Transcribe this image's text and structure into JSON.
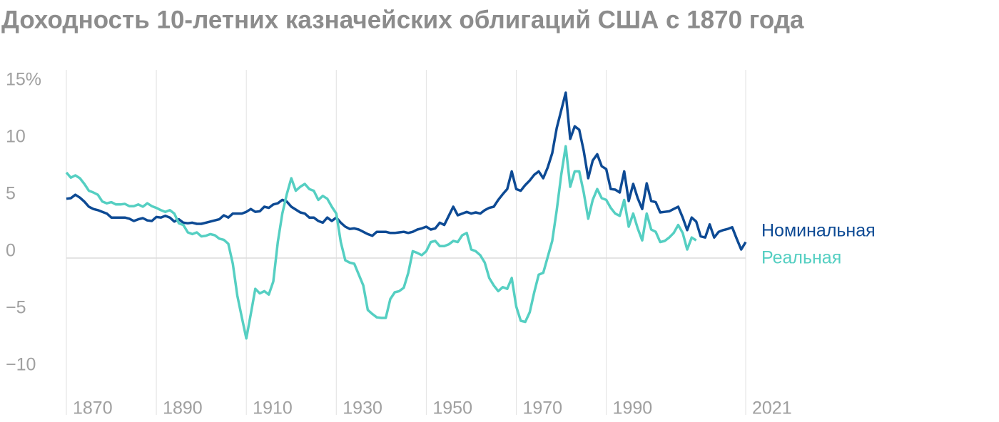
{
  "chart_data": {
    "type": "line",
    "title": "Доходность 10-летних казначейских облигаций США с 1870 года",
    "x": [
      1870,
      1871,
      1872,
      1873,
      1874,
      1875,
      1876,
      1877,
      1878,
      1879,
      1880,
      1881,
      1882,
      1883,
      1884,
      1885,
      1886,
      1887,
      1888,
      1889,
      1890,
      1891,
      1892,
      1893,
      1894,
      1895,
      1896,
      1897,
      1898,
      1899,
      1900,
      1901,
      1902,
      1903,
      1904,
      1905,
      1906,
      1907,
      1908,
      1909,
      1910,
      1911,
      1912,
      1913,
      1914,
      1915,
      1916,
      1917,
      1918,
      1919,
      1920,
      1921,
      1922,
      1923,
      1924,
      1925,
      1926,
      1927,
      1928,
      1929,
      1930,
      1931,
      1932,
      1933,
      1934,
      1935,
      1936,
      1937,
      1938,
      1939,
      1940,
      1941,
      1942,
      1943,
      1944,
      1945,
      1946,
      1947,
      1948,
      1949,
      1950,
      1951,
      1952,
      1953,
      1954,
      1955,
      1956,
      1957,
      1958,
      1959,
      1960,
      1961,
      1962,
      1963,
      1964,
      1965,
      1966,
      1967,
      1968,
      1969,
      1970,
      1971,
      1972,
      1973,
      1974,
      1975,
      1976,
      1977,
      1978,
      1979,
      1980,
      1981,
      1982,
      1983,
      1984,
      1985,
      1986,
      1987,
      1988,
      1989,
      1990,
      1991,
      1992,
      1993,
      1994,
      1995,
      1996,
      1997,
      1998,
      1999,
      2000,
      2001,
      2002,
      2003,
      2004,
      2005,
      2006,
      2007,
      2008,
      2009,
      2010,
      2011,
      2012,
      2013,
      2014,
      2015,
      2016,
      2017,
      2018,
      2019,
      2020,
      2021
    ],
    "series": [
      {
        "name": "Номинальная",
        "color": "#0d4a94",
        "values": [
          5.2,
          5.25,
          5.55,
          5.3,
          4.95,
          4.5,
          4.3,
          4.2,
          4.05,
          3.9,
          3.55,
          3.55,
          3.55,
          3.55,
          3.45,
          3.25,
          3.4,
          3.5,
          3.3,
          3.25,
          3.6,
          3.55,
          3.7,
          3.55,
          3.2,
          3.4,
          3.1,
          3.05,
          3.1,
          3.0,
          3.0,
          3.1,
          3.2,
          3.3,
          3.4,
          3.75,
          3.55,
          3.9,
          3.9,
          3.9,
          4.05,
          4.3,
          4.05,
          4.1,
          4.5,
          4.4,
          4.7,
          4.8,
          5.1,
          4.95,
          4.5,
          4.25,
          4.0,
          3.9,
          3.55,
          3.55,
          3.25,
          3.1,
          3.55,
          3.25,
          3.55,
          3.1,
          2.75,
          2.55,
          2.6,
          2.5,
          2.3,
          2.1,
          1.95,
          2.3,
          2.3,
          2.3,
          2.2,
          2.2,
          2.25,
          2.3,
          2.2,
          2.3,
          2.5,
          2.6,
          2.75,
          2.5,
          2.6,
          3.1,
          2.9,
          3.7,
          4.5,
          3.75,
          3.9,
          4.05,
          3.9,
          4.0,
          3.9,
          4.2,
          4.4,
          4.5,
          5.1,
          5.6,
          6.05,
          7.6,
          6.05,
          5.9,
          6.4,
          6.8,
          7.3,
          7.6,
          7.0,
          7.95,
          9.2,
          11.4,
          12.95,
          14.5,
          10.45,
          11.55,
          11.25,
          9.4,
          7.0,
          8.55,
          9.1,
          8.05,
          7.8,
          6.05,
          6.0,
          5.75,
          7.6,
          5.0,
          6.5,
          5.25,
          4.3,
          6.55,
          5.0,
          4.9,
          4.0,
          4.05,
          4.1,
          4.3,
          4.5,
          3.55,
          2.45,
          3.55,
          3.2,
          1.9,
          1.8,
          2.95,
          1.8,
          2.3,
          2.45,
          2.55,
          2.7,
          1.7,
          0.75,
          1.4
        ]
      },
      {
        "name": "Реальная",
        "color": "#55cfc2",
        "values": [
          7.5,
          7.05,
          7.25,
          7.0,
          6.5,
          5.9,
          5.75,
          5.55,
          4.95,
          4.8,
          4.9,
          4.7,
          4.7,
          4.75,
          4.55,
          4.55,
          4.7,
          4.5,
          4.8,
          4.55,
          4.4,
          4.2,
          4.05,
          4.2,
          3.9,
          3.05,
          2.9,
          2.25,
          2.1,
          2.25,
          1.9,
          1.95,
          2.1,
          2.0,
          1.7,
          1.6,
          1.25,
          -0.5,
          -3.3,
          -5.2,
          -7.05,
          -4.9,
          -2.7,
          -3.1,
          -2.9,
          -3.2,
          -2.05,
          1.4,
          3.9,
          5.6,
          7.0,
          5.9,
          6.25,
          6.5,
          6.05,
          5.9,
          5.1,
          5.45,
          5.2,
          4.5,
          3.9,
          1.4,
          -0.2,
          -0.4,
          -0.5,
          -1.45,
          -2.4,
          -4.55,
          -4.9,
          -5.2,
          -5.25,
          -5.25,
          -3.6,
          -3.0,
          -2.9,
          -2.6,
          -1.3,
          0.6,
          0.45,
          0.25,
          0.6,
          1.4,
          1.5,
          1.05,
          1.05,
          1.2,
          1.5,
          1.4,
          2.0,
          2.2,
          0.75,
          0.6,
          0.25,
          -0.4,
          -1.75,
          -2.4,
          -2.9,
          -2.55,
          -2.7,
          -1.75,
          -4.25,
          -5.5,
          -5.6,
          -4.75,
          -3.0,
          -1.45,
          -1.3,
          0.1,
          1.5,
          4.2,
          7.3,
          9.8,
          6.25,
          7.6,
          7.6,
          5.75,
          3.45,
          5.1,
          6.05,
          5.25,
          5.1,
          4.4,
          3.9,
          3.7,
          5.1,
          2.75,
          3.9,
          2.6,
          1.55,
          3.9,
          2.5,
          2.3,
          1.4,
          1.5,
          1.8,
          2.2,
          2.9,
          2.2,
          0.75,
          1.8,
          1.55,
          null,
          null,
          null,
          null,
          null,
          null,
          null,
          null,
          null,
          null,
          null
        ]
      }
    ],
    "xlim": [
      1870,
      2021
    ],
    "xticks": [
      1870,
      1890,
      1910,
      1930,
      1950,
      1970,
      1990,
      2021
    ],
    "ylim": [
      -13.5,
      16.5
    ],
    "yticks": [
      {
        "value": -10,
        "label": "−10"
      },
      {
        "value": -5,
        "label": "−5"
      },
      0,
      5,
      10,
      {
        "value": 15,
        "label": "15%"
      }
    ],
    "grid": "x"
  }
}
